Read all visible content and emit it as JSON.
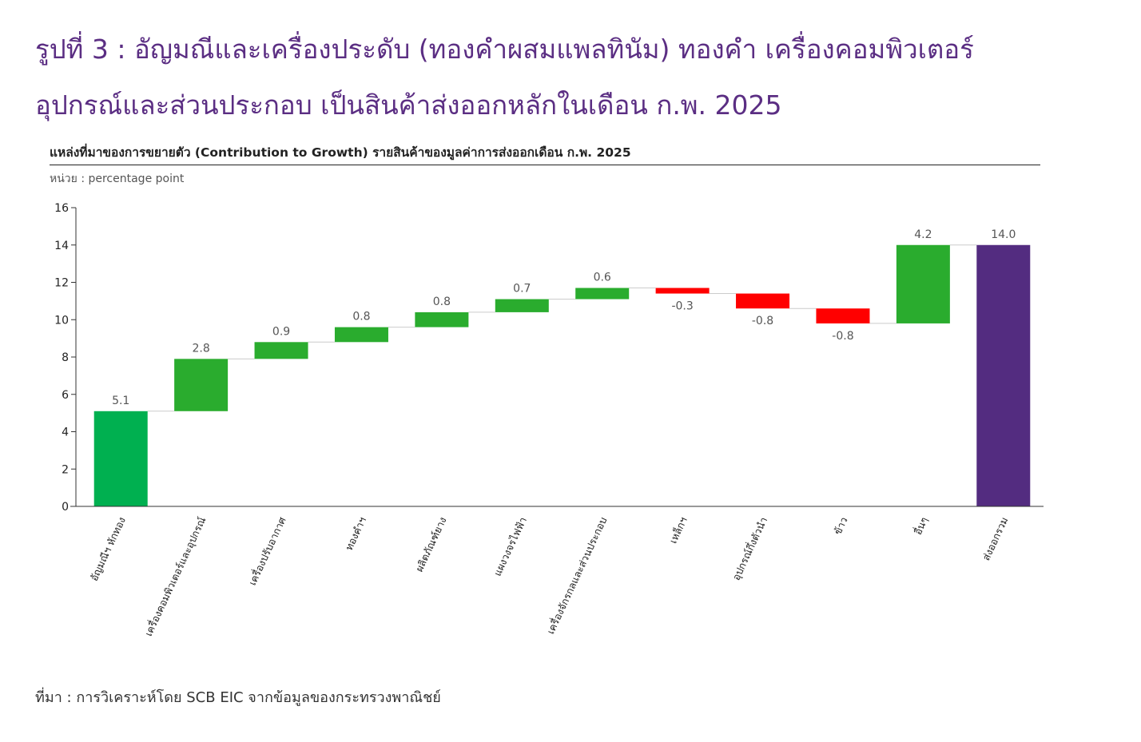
{
  "header": {
    "title_line1": "รูปที่ 3 : อัญมณีและเครื่องประดับ (ทองคำผสมแพลทินัม) ทองคำ เครื่องคอมพิวเตอร์",
    "title_line2": "อุปกรณ์และส่วนประกอบ เป็นสินค้าส่งออกหลักในเดือน ก.พ. 2025",
    "title_color": "#5b2e83"
  },
  "chart_data": {
    "type": "waterfall",
    "title": "แหล่งที่มาของการขยายตัว (Contribution to Growth) รายสินค้าของมูลค่าการส่งออกเดือน ก.พ. 2025",
    "unit_label": "หน่วย : percentage point",
    "ylim": [
      0,
      16
    ],
    "yticks": [
      0,
      2,
      4,
      6,
      8,
      10,
      12,
      14,
      16
    ],
    "grid": false,
    "categories": [
      "อัญมณีฯ หักทอง",
      "เครื่องคอมพิวเตอร์และอุปกรณ์",
      "เครื่องปรับอากาศ",
      "ทองคำฯ",
      "ผลิตภัณฑ์ยาง",
      "แผงวงจรไฟฟ้า",
      "เครื่องจักรกลและส่วนประกอบ",
      "เหล็กฯ",
      "อุปกรณ์กึ่งตัวนำ",
      "ข้าว",
      "อื่นๆ",
      "ส่งออกรวม"
    ],
    "values": [
      5.1,
      2.8,
      0.9,
      0.8,
      0.8,
      0.7,
      0.6,
      -0.3,
      -0.8,
      -0.8,
      4.2,
      14.0
    ],
    "value_labels": [
      "5.1",
      "2.8",
      "0.9",
      "0.8",
      "0.8",
      "0.7",
      "0.6",
      "-0.3",
      "-0.8",
      "-0.8",
      "4.2",
      "14.0"
    ],
    "is_total": [
      false,
      false,
      false,
      false,
      false,
      false,
      false,
      false,
      false,
      false,
      false,
      true
    ],
    "colors": {
      "first": "#00b050",
      "increase": "#2aac2e",
      "decrease": "#ff0000",
      "total": "#532c80",
      "connector": "#cccccc"
    }
  },
  "footer": {
    "source": "ที่มา : การวิเคราะห์โดย SCB EIC จากข้อมูลของกระทรวงพาณิชย์"
  }
}
